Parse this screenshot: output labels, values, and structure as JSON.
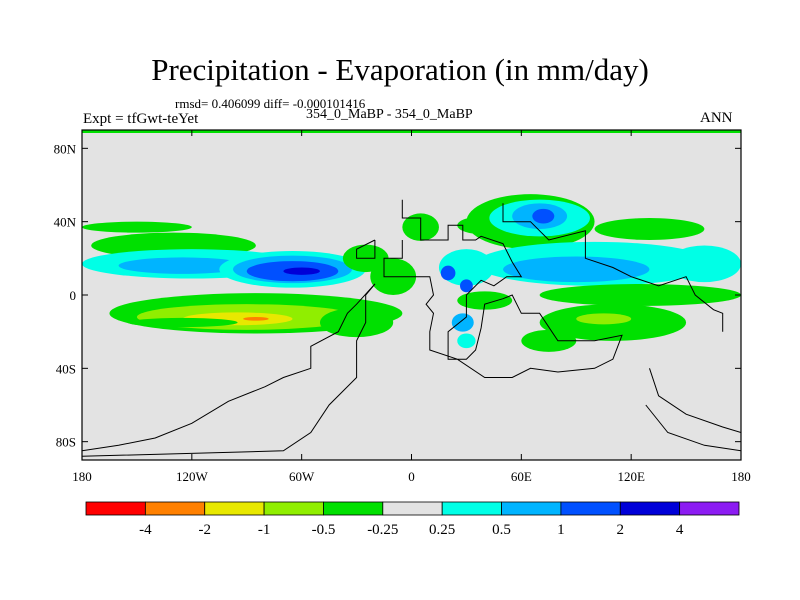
{
  "chart_data": {
    "type": "heatmap",
    "title": "Precipitation - Evaporation (in mm/day)",
    "stats_text": "rmsd= 0.406099 diff= -0.000101416",
    "subtitle": "354_0_MaBP - 354_0_MaBP",
    "expt_label": "Expt = tfGwt-teYet",
    "season": "ANN",
    "x_range": [
      -180,
      180
    ],
    "y_range": [
      -90,
      90
    ],
    "x_ticks": [
      {
        "value": -180,
        "label": "180"
      },
      {
        "value": -120,
        "label": "120W"
      },
      {
        "value": -60,
        "label": "60W"
      },
      {
        "value": 0,
        "label": "0"
      },
      {
        "value": 60,
        "label": "60E"
      },
      {
        "value": 120,
        "label": "120E"
      },
      {
        "value": 180,
        "label": "180"
      }
    ],
    "y_ticks": [
      {
        "value": 80,
        "label": "80N"
      },
      {
        "value": 40,
        "label": "40N"
      },
      {
        "value": 0,
        "label": "0"
      },
      {
        "value": -40,
        "label": "40S"
      },
      {
        "value": -80,
        "label": "80S"
      }
    ],
    "colorbar": {
      "levels": [
        -4,
        -2,
        -1,
        -0.5,
        -0.25,
        0.25,
        0.5,
        1,
        2,
        4
      ],
      "level_labels": [
        "-4",
        "-2",
        "-1",
        "-0.5",
        "-0.25",
        "0.25",
        "0.5",
        "1",
        "2",
        "4"
      ],
      "colors": [
        "#ff0000",
        "#ff8000",
        "#e8e800",
        "#90ee00",
        "#00e000",
        "#e3e3e3",
        "#00ffe6",
        "#00b4ff",
        "#0050ff",
        "#0000d8",
        "#8c1cf2"
      ]
    },
    "background_color": "#e3e3e3",
    "regions": [
      {
        "cls": 4,
        "lon": -150,
        "lat": 37,
        "w": 60,
        "h": 6
      },
      {
        "cls": 4,
        "lon": -130,
        "lat": 27,
        "w": 90,
        "h": 14
      },
      {
        "cls": 6,
        "lon": -120,
        "lat": 17,
        "w": 120,
        "h": 16
      },
      {
        "cls": 7,
        "lon": -125,
        "lat": 16,
        "w": 70,
        "h": 9
      },
      {
        "cls": 6,
        "lon": -65,
        "lat": 14,
        "w": 80,
        "h": 20
      },
      {
        "cls": 7,
        "lon": -65,
        "lat": 14,
        "w": 65,
        "h": 15
      },
      {
        "cls": 8,
        "lon": -65,
        "lat": 13,
        "w": 50,
        "h": 11
      },
      {
        "cls": 9,
        "lon": -60,
        "lat": 13,
        "w": 20,
        "h": 4
      },
      {
        "cls": 4,
        "lon": -25,
        "lat": 20,
        "w": 25,
        "h": 15
      },
      {
        "cls": 4,
        "lon": -10,
        "lat": 10,
        "w": 25,
        "h": 20
      },
      {
        "cls": 4,
        "lon": -85,
        "lat": -10,
        "w": 160,
        "h": 22
      },
      {
        "cls": 3,
        "lon": -90,
        "lat": -12,
        "w": 120,
        "h": 14
      },
      {
        "cls": 2,
        "lon": -95,
        "lat": -13,
        "w": 60,
        "h": 7
      },
      {
        "cls": 1,
        "lon": -85,
        "lat": -13,
        "w": 14,
        "h": 2
      },
      {
        "cls": 4,
        "lon": -125,
        "lat": -15,
        "w": 60,
        "h": 5
      },
      {
        "cls": 4,
        "lon": -30,
        "lat": -15,
        "w": 40,
        "h": 16
      },
      {
        "cls": 4,
        "lon": 5,
        "lat": 37,
        "w": 20,
        "h": 15
      },
      {
        "cls": 4,
        "lon": 40,
        "lat": 38,
        "w": 30,
        "h": 10
      },
      {
        "cls": 4,
        "lon": 65,
        "lat": 40,
        "w": 70,
        "h": 30
      },
      {
        "cls": 6,
        "lon": 70,
        "lat": 42,
        "w": 55,
        "h": 20
      },
      {
        "cls": 7,
        "lon": 70,
        "lat": 43,
        "w": 30,
        "h": 14
      },
      {
        "cls": 8,
        "lon": 72,
        "lat": 43,
        "w": 12,
        "h": 8
      },
      {
        "cls": 4,
        "lon": 130,
        "lat": 36,
        "w": 60,
        "h": 12
      },
      {
        "cls": 6,
        "lon": 100,
        "lat": 17,
        "w": 130,
        "h": 24
      },
      {
        "cls": 7,
        "lon": 90,
        "lat": 14,
        "w": 80,
        "h": 14
      },
      {
        "cls": 6,
        "lon": 160,
        "lat": 17,
        "w": 40,
        "h": 20
      },
      {
        "cls": 6,
        "lon": 30,
        "lat": 15,
        "w": 30,
        "h": 20
      },
      {
        "cls": 8,
        "lon": 20,
        "lat": 12,
        "w": 8,
        "h": 8
      },
      {
        "cls": 8,
        "lon": 30,
        "lat": 5,
        "w": 7,
        "h": 7
      },
      {
        "cls": 4,
        "lon": 40,
        "lat": -3,
        "w": 30,
        "h": 10
      },
      {
        "cls": 7,
        "lon": 28,
        "lat": -15,
        "w": 12,
        "h": 10
      },
      {
        "cls": 4,
        "lon": 125,
        "lat": 0,
        "w": 110,
        "h": 12
      },
      {
        "cls": 4,
        "lon": 110,
        "lat": -15,
        "w": 80,
        "h": 20
      },
      {
        "cls": 3,
        "lon": 105,
        "lat": -13,
        "w": 30,
        "h": 6
      },
      {
        "cls": 4,
        "lon": 75,
        "lat": -25,
        "w": 30,
        "h": 12
      },
      {
        "cls": 6,
        "lon": 30,
        "lat": -25,
        "w": 10,
        "h": 8
      }
    ],
    "outlines": [
      [
        [
          -5,
          52
        ],
        [
          -5,
          42
        ],
        [
          5,
          42
        ],
        [
          5,
          30
        ],
        [
          20,
          30
        ],
        [
          20,
          38
        ],
        [
          28,
          38
        ],
        [
          28,
          30
        ],
        [
          35,
          30
        ],
        [
          38,
          32
        ],
        [
          50,
          28
        ],
        [
          55,
          18
        ],
        [
          60,
          10
        ],
        [
          52,
          10
        ],
        [
          45,
          5
        ],
        [
          38,
          8
        ],
        [
          30,
          0
        ],
        [
          30,
          -12
        ],
        [
          20,
          -20
        ],
        [
          20,
          -35
        ],
        [
          30,
          -35
        ],
        [
          35,
          -30
        ],
        [
          38,
          -18
        ],
        [
          40,
          -5
        ],
        [
          50,
          -2
        ],
        [
          55,
          0
        ],
        [
          60,
          -10
        ],
        [
          70,
          -10
        ],
        [
          80,
          -25
        ],
        [
          100,
          -25
        ],
        [
          115,
          -22
        ],
        [
          110,
          -35
        ],
        [
          100,
          -40
        ],
        [
          80,
          -42
        ],
        [
          65,
          -40
        ],
        [
          55,
          -45
        ],
        [
          40,
          -45
        ],
        [
          25,
          -35
        ],
        [
          10,
          -30
        ],
        [
          10,
          -20
        ],
        [
          12,
          -10
        ],
        [
          8,
          -5
        ],
        [
          12,
          0
        ],
        [
          10,
          10
        ],
        [
          -15,
          10
        ],
        [
          -15,
          20
        ],
        [
          -5,
          20
        ],
        [
          -5,
          30
        ]
      ],
      [
        [
          -20,
          30
        ],
        [
          -20,
          20
        ],
        [
          -30,
          20
        ],
        [
          -30,
          25
        ],
        [
          -20,
          30
        ]
      ],
      [
        [
          -20,
          6
        ],
        [
          -30,
          -5
        ],
        [
          -35,
          -10
        ],
        [
          -40,
          -20
        ],
        [
          -55,
          -28
        ],
        [
          -55,
          -40
        ],
        [
          -70,
          -45
        ],
        [
          -80,
          -50
        ],
        [
          -100,
          -58
        ],
        [
          -120,
          -70
        ],
        [
          -140,
          -78
        ],
        [
          -160,
          -82
        ],
        [
          -180,
          -85
        ]
      ],
      [
        [
          -20,
          6
        ],
        [
          -25,
          0
        ],
        [
          -25,
          -15
        ],
        [
          -30,
          -25
        ],
        [
          -30,
          -45
        ],
        [
          -45,
          -60
        ],
        [
          -55,
          -75
        ],
        [
          -70,
          -85
        ],
        [
          -180,
          -88
        ]
      ],
      [
        [
          50,
          50
        ],
        [
          50,
          40
        ],
        [
          65,
          40
        ],
        [
          75,
          30
        ],
        [
          95,
          35
        ],
        [
          95,
          20
        ],
        [
          110,
          15
        ],
        [
          120,
          10
        ],
        [
          135,
          5
        ],
        [
          150,
          10
        ],
        [
          155,
          0
        ],
        [
          165,
          -8
        ],
        [
          170,
          -10
        ],
        [
          170,
          -20
        ]
      ],
      [
        [
          130,
          -40
        ],
        [
          135,
          -55
        ],
        [
          150,
          -65
        ],
        [
          170,
          -72
        ],
        [
          180,
          -75
        ]
      ],
      [
        [
          128,
          -60
        ],
        [
          140,
          -75
        ],
        [
          160,
          -82
        ],
        [
          180,
          -85
        ]
      ]
    ]
  }
}
